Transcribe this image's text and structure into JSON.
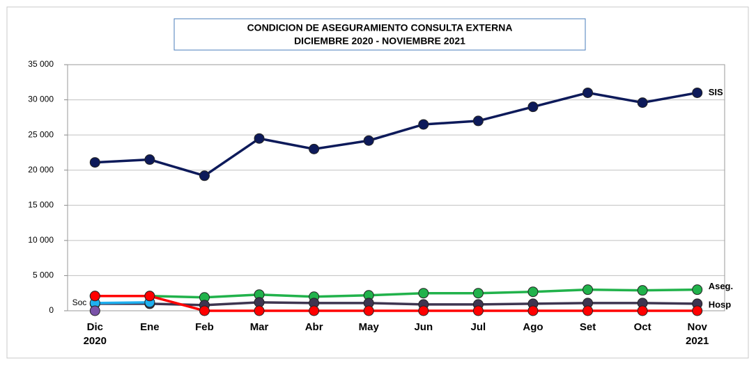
{
  "chart_data": {
    "type": "line",
    "title": "CONDICION DE ASEGURAMIENTO CONSULTA EXTERNA",
    "subtitle": "DICIEMBRE 2020 - NOVIEMBRE 2021",
    "categories": [
      "Dic 2020",
      "Ene",
      "Feb",
      "Mar",
      "Abr",
      "May",
      "Jun",
      "Jul",
      "Ago",
      "Set",
      "Oct",
      "Nov 2021"
    ],
    "series": [
      {
        "name": "SIS",
        "color": "#0d1a5a",
        "values": [
          21100,
          21500,
          19200,
          24500,
          23000,
          24200,
          26500,
          27000,
          29000,
          31000,
          29600,
          31000
        ]
      },
      {
        "name": "Aseg.",
        "color": "#21b24b",
        "values": [
          2100,
          2100,
          1900,
          2300,
          2000,
          2200,
          2500,
          2500,
          2700,
          3000,
          2900,
          3000
        ]
      },
      {
        "name": "Hosp",
        "color": "#3e3550",
        "values": [
          1000,
          1000,
          800,
          1200,
          1100,
          1100,
          900,
          900,
          1000,
          1100,
          1100,
          1000
        ]
      },
      {
        "name": "Soc",
        "color": "#1fb0f0",
        "values": [
          1100,
          1200,
          null,
          null,
          null,
          null,
          null,
          null,
          null,
          null,
          null,
          null
        ]
      },
      {
        "color": "#ff0000",
        "values": [
          2100,
          2100,
          0,
          0,
          0,
          0,
          0,
          0,
          0,
          0,
          0,
          0
        ]
      },
      {
        "color": "#7a52a8",
        "values": [
          0,
          null,
          null,
          null,
          null,
          null,
          null,
          null,
          null,
          null,
          null,
          null
        ]
      }
    ],
    "ylim": [
      0,
      35000
    ],
    "yticks": [
      0,
      {
        "value": 5000,
        "label": "5 000"
      },
      {
        "value": 10000,
        "label": "10 000"
      },
      {
        "value": 15000,
        "label": "15 000"
      },
      {
        "value": 20000,
        "label": "20 000"
      },
      {
        "value": 25000,
        "label": "25 000"
      },
      {
        "value": 30000,
        "label": "30 000"
      },
      {
        "value": 35000,
        "label": "35 000"
      }
    ],
    "grid": true
  }
}
